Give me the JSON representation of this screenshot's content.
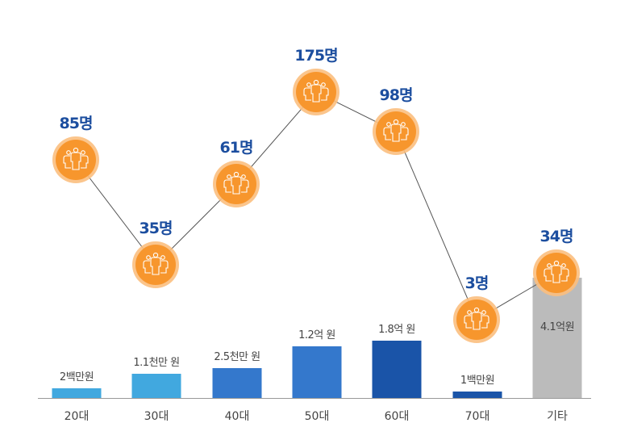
{
  "chart_data": {
    "type": "bar+line",
    "categories": [
      "20대",
      "30대",
      "40대",
      "50대",
      "60대",
      "70대",
      "기타"
    ],
    "bar_series": {
      "name": "amount",
      "labels": [
        "2백만원",
        "1.1천만 원",
        "2.5천만 원",
        "1.2억 원",
        "1.8억 원",
        "1백만원",
        "4.1억원"
      ],
      "values_krw": [
        2000000,
        11000000,
        25000000,
        120000000,
        180000000,
        1000000,
        410000000
      ],
      "colors": [
        "#41a8df",
        "#41a8df",
        "#3478cc",
        "#3478cc",
        "#1a54a8",
        "#1a54a8",
        "#bbbbbb"
      ]
    },
    "line_series": {
      "name": "people",
      "values": [
        85,
        35,
        61,
        175,
        98,
        3,
        34
      ],
      "labels": [
        "85명",
        "35명",
        "61명",
        "175명",
        "98명",
        "3명",
        "34명"
      ],
      "marker_icon": "people-group-icon",
      "marker_color": "#f7962d"
    },
    "grid": false
  }
}
